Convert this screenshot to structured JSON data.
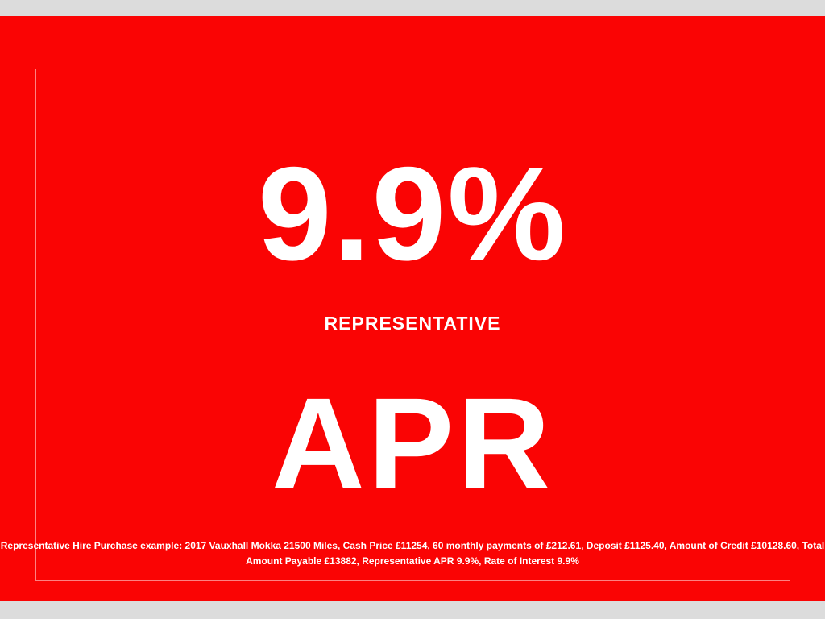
{
  "banner": {
    "rate_value": "9.9%",
    "rate_qualifier": "REPRESENTATIVE",
    "rate_type": "APR",
    "disclaimer_line1": "Representative Hire Purchase example: 2017 Vauxhall Mokka 21500 Miles, Cash Price £11254, 60 monthly payments of £212.61, Deposit £1125.40, Amount of Credit £10128.60, Total",
    "disclaimer_line2": "Amount Payable £13882, Representative APR 9.9%, Rate of Interest 9.9%",
    "colors": {
      "background": "#fa0404",
      "text": "#ffffff",
      "page_margin": "#dcdcdc"
    }
  }
}
